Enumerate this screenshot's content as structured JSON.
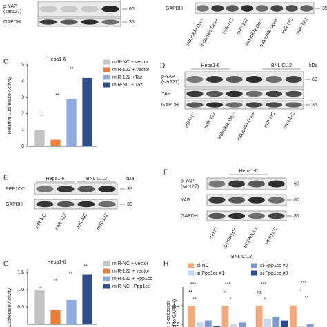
{
  "chart_data": [
    {
      "type": "bar",
      "panel_label": "C",
      "title": "Hepa1-6",
      "ylabel": [
        "Relative Luciferase Activity"
      ],
      "categories": [
        null
      ],
      "ylim": [
        0,
        5
      ],
      "yticks": [
        0,
        1,
        2,
        3,
        4,
        5
      ],
      "series": [
        {
          "name": "miR-NC + vector",
          "color": "#c4c4c4",
          "values": [
            1.0
          ]
        },
        {
          "name": "miR-122 + vector",
          "color": "#ee7d3a",
          "values": [
            0.4
          ]
        },
        {
          "name": "miR-122 +Taz",
          "color": "#8faadc",
          "values": [
            2.9
          ]
        },
        {
          "name": "miR-NC + Taz",
          "color": "#2f4c8c",
          "values": [
            4.2
          ]
        }
      ],
      "annotations": [
        "**",
        "**",
        "**"
      ]
    },
    {
      "type": "bar",
      "panel_label": "G",
      "title": "Hepa1-6",
      "ylabel": [
        "lative Luciferase Activity"
      ],
      "categories": [
        null
      ],
      "ylim": [
        0,
        1.6
      ],
      "yticks": [
        {
          "value": 0.5,
          "label": "0.5"
        },
        {
          "value": 1,
          "label": "1.0"
        },
        {
          "value": 1.5,
          "label": "1.5"
        }
      ],
      "series": [
        {
          "name": "miR-NC + vector",
          "color": "#c4c4c4",
          "values": [
            1.0
          ]
        },
        {
          "name": "miR-122 + vector",
          "color": "#ee7d3a",
          "values": [
            0.4
          ]
        },
        {
          "name": "miR-122 + Ppp1cc",
          "color": "#8faadc",
          "values": [
            0.7
          ]
        },
        {
          "name": "miR-NC +Ppp1cc",
          "color": "#2f4c8c",
          "values": [
            1.45
          ]
        }
      ],
      "annotations": [
        "**",
        "**",
        "**",
        "**"
      ]
    },
    {
      "type": "bar",
      "panel_label": "H",
      "title": "BNL CL.2",
      "ylabel": [
        "ve expression",
        "zed to GAPDH)"
      ],
      "categories": [
        null,
        null,
        null,
        null
      ],
      "ylim": [
        0,
        1.5
      ],
      "yticks": [
        {
          "value": 0.5,
          "label": "0.5"
        },
        {
          "value": 1,
          "label": "1.0"
        }
      ],
      "series": [
        {
          "name": "si-NC",
          "color": "#f4a97a",
          "values": [
            1.0,
            1.0,
            1.0,
            1.0
          ]
        },
        {
          "name": "si-Ppp1cc #1",
          "color": "#c9d6ef",
          "values": [
            0.55,
            0.5,
            0.65,
            0.45
          ]
        },
        {
          "name": "si-Ppp1cc #2",
          "color": "#7f9bd0",
          "values": [
            0.6,
            0.55,
            0.7,
            0.5
          ]
        },
        {
          "name": "si-Ppp1cc #3",
          "color": "#2c4a8c",
          "values": [
            0.45,
            0.4,
            0.6,
            0.4
          ]
        }
      ],
      "annotations": [
        "***",
        "**",
        "**",
        "***",
        "**",
        "*",
        "***",
        "ns",
        "*",
        "***",
        "*",
        "**"
      ]
    }
  ],
  "blots": {
    "top_left": {
      "rows": [
        {
          "label": [
            "p-YAP",
            "(ser127)"
          ],
          "kda": "60"
        },
        {
          "label": [
            "GAPDH"
          ],
          "kda": "35"
        }
      ]
    },
    "top_right": {
      "rows": [
        {
          "label": [
            "GAPDH"
          ],
          "kda": "35"
        }
      ],
      "lanes": [
        "inducible Dox-",
        "inducible Dox+",
        "miR-NC",
        "miR-122",
        "inducible Dox-",
        "inducible Dox+",
        "miR-NC",
        "miR-122"
      ]
    },
    "D": {
      "panel_label": "D",
      "groups": [
        "Hepa1-6",
        "BNL CL.2"
      ],
      "kda_header": "kDa",
      "rows": [
        {
          "label": [
            "p-YAP",
            "(ser127)"
          ],
          "kda": "60"
        },
        {
          "label": [
            "YAP"
          ]
        },
        {
          "label": [
            "GAPDH"
          ],
          "kda": "35"
        }
      ],
      "lanes": [
        "miR-NC",
        "miR-122",
        "inducible Dox-",
        "inducible Dox+",
        "miR-NC",
        "miR-122"
      ]
    },
    "E": {
      "panel_label": "E",
      "groups": [
        "Hepa1-6",
        "BNL CL.2"
      ],
      "kda_header": "kDa",
      "rows": [
        {
          "label": [
            "PPP1CC"
          ],
          "kda": "35"
        },
        {
          "label": [
            "GAPDH"
          ],
          "kda": "35"
        }
      ],
      "lanes": [
        "miR-NC",
        "miR-122",
        "miR-NC",
        "miR-122"
      ]
    },
    "F": {
      "panel_label": "F",
      "groups": [
        "Hepa1-6"
      ],
      "rows": [
        {
          "label": [
            "p-YAP",
            "(ser127)"
          ],
          "kda": "60"
        },
        {
          "label": [
            "YAP"
          ],
          "kda": "60"
        },
        {
          "label": [
            "GAPDH"
          ],
          "kda": "35"
        }
      ],
      "lanes": [
        "si-NC",
        "si-PPP1CC",
        "pCDNA3.1",
        "PPP1CC"
      ]
    }
  }
}
